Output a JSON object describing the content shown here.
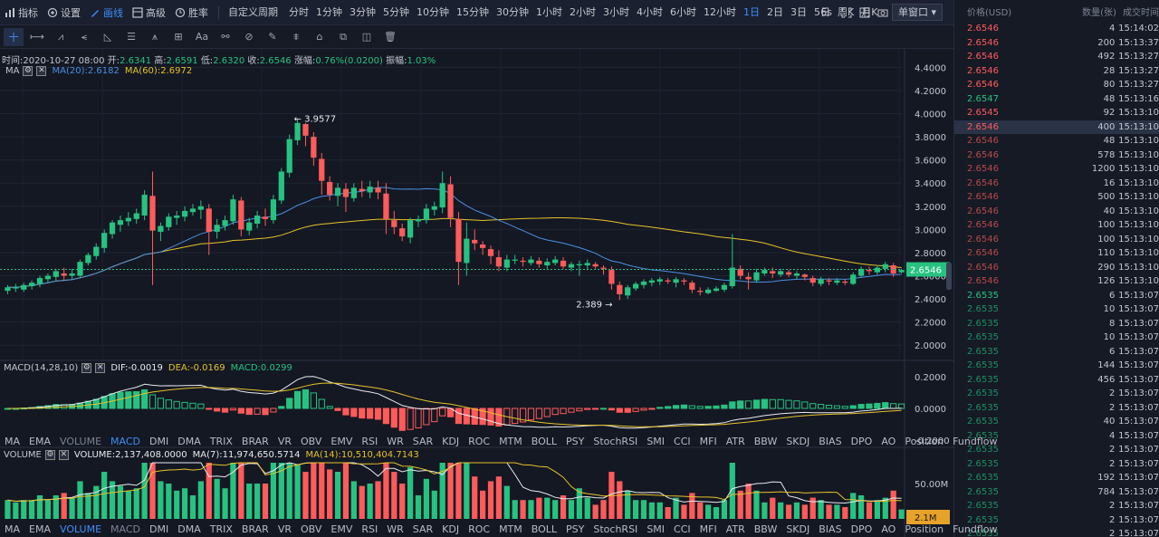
{
  "toolbar": {
    "items": [
      {
        "label": "指标",
        "icon": "indicator-icon"
      },
      {
        "label": "设置",
        "icon": "settings-icon"
      },
      {
        "label": "画线",
        "icon": "draw-icon",
        "active": true
      },
      {
        "label": "高级",
        "icon": "advanced-icon"
      },
      {
        "label": "胜率",
        "icon": "winrate-icon"
      }
    ],
    "custom_period": "自定义周期",
    "periods": [
      "分时",
      "1分钟",
      "3分钟",
      "5分钟",
      "10分钟",
      "15分钟",
      "30分钟",
      "1小时",
      "2小时",
      "3小时",
      "4小时",
      "6小时",
      "12小时",
      "1日",
      "2日",
      "3日",
      "5日",
      "周K",
      "月K"
    ],
    "active_period": "1日",
    "refresh": "6s",
    "window_mode": "单窗口"
  },
  "drawtools": [
    "十",
    "⟼",
    "⩘",
    "⪪",
    "◺",
    "☰",
    "⩚",
    "⊞",
    "Aa",
    "⚯",
    "⊘",
    "✎",
    "⩨",
    "⌂",
    "⧉",
    "◫",
    "🗑"
  ],
  "ohlc": {
    "time_label": "时间:",
    "time": "2020-10-27 08:00",
    "open_label": "开:",
    "open": "2.6341",
    "high_label": "高:",
    "high": "2.6591",
    "low_label": "低:",
    "low": "2.6320",
    "close_label": "收:",
    "close": "2.6546",
    "change_label": "涨幅:",
    "change": "0.76%(0.0200)",
    "amp_label": "振幅:",
    "amp": "1.03%"
  },
  "ma_legend": {
    "name": "MA",
    "ma20": "MA(20):2.6182",
    "ma60": "MA(60):2.6972"
  },
  "macd_legend": {
    "name": "MACD(14,28,10)",
    "dif": "DIF:-0.0019",
    "dea": "DEA:-0.0169",
    "macd": "MACD:0.0299"
  },
  "vol_legend": {
    "name": "VOLUME",
    "volume": "VOLUME:2,137,408.0000",
    "ma7": "MA(7):11,974,650.5714",
    "ma14": "MA(14):10,510,404.7143"
  },
  "indicator_tabs": [
    "MA",
    "EMA",
    "VOLUME",
    "MACD",
    "DMI",
    "DMA",
    "TRIX",
    "BRAR",
    "VR",
    "OBV",
    "EMV",
    "RSI",
    "WR",
    "SAR",
    "KDJ",
    "ROC",
    "MTM",
    "BOLL",
    "PSY",
    "StochRSI",
    "SMI",
    "CCI",
    "MFI",
    "ATR",
    "BBW",
    "SKDJ",
    "BIAS",
    "DPO",
    "AO",
    "Position",
    "Fundflow"
  ],
  "price_axis": [
    "4.4000",
    "4.2000",
    "4.0000",
    "3.8000",
    "3.6000",
    "3.4000",
    "3.2000",
    "3.0000",
    "2.8000",
    "2.6000",
    "2.4000",
    "2.2000",
    "2.0000"
  ],
  "macd_axis": [
    "0.2000",
    "0.0000",
    "-0.2000"
  ],
  "vol_axis": [
    "50.00M"
  ],
  "current_price": "2.6546",
  "current_vol": "2.1M",
  "annotations": {
    "high": "← 3.9577",
    "low": "2.389 →"
  },
  "colors": {
    "up": "#26c281",
    "down": "#ff5b5b",
    "ma20": "#4a90e2",
    "ma60": "#e6c229",
    "accent": "#3e8ef7"
  },
  "trades": {
    "headers": [
      "价格(USD)",
      "数量(张)",
      "成交时间"
    ],
    "rows": [
      [
        "2.6546",
        "4",
        "15:14:02",
        "down"
      ],
      [
        "2.6546",
        "200",
        "15:13:37",
        "down"
      ],
      [
        "2.6546",
        "492",
        "15:13:27",
        "down"
      ],
      [
        "2.6546",
        "28",
        "15:13:27",
        "down"
      ],
      [
        "2.6546",
        "80",
        "15:13:27",
        "down"
      ],
      [
        "2.6547",
        "48",
        "15:13:16",
        "up"
      ],
      [
        "2.6545",
        "92",
        "15:13:10",
        "down"
      ],
      [
        "2.6546",
        "400",
        "15:13:10",
        "down-hl"
      ],
      [
        "2.6546",
        "48",
        "15:13:10",
        "down"
      ],
      [
        "2.6546",
        "578",
        "15:13:10",
        "down"
      ],
      [
        "2.6546",
        "1200",
        "15:13:10",
        "down"
      ],
      [
        "2.6546",
        "16",
        "15:13:10",
        "down"
      ],
      [
        "2.6546",
        "500",
        "15:13:10",
        "down"
      ],
      [
        "2.6546",
        "40",
        "15:13:10",
        "down"
      ],
      [
        "2.6546",
        "100",
        "15:13:10",
        "down"
      ],
      [
        "2.6546",
        "100",
        "15:13:10",
        "down"
      ],
      [
        "2.6546",
        "110",
        "15:13:10",
        "down"
      ],
      [
        "2.6546",
        "290",
        "15:13:10",
        "down"
      ],
      [
        "2.6546",
        "126",
        "15:13:10",
        "down"
      ],
      [
        "2.6535",
        "6",
        "15:13:07",
        "up"
      ],
      [
        "2.6535",
        "10",
        "15:13:07",
        "up"
      ],
      [
        "2.6535",
        "8",
        "15:13:07",
        "up"
      ],
      [
        "2.6535",
        "10",
        "15:13:07",
        "up"
      ],
      [
        "2.6535",
        "6",
        "15:13:07",
        "up"
      ],
      [
        "2.6535",
        "144",
        "15:13:07",
        "up"
      ],
      [
        "2.6535",
        "456",
        "15:13:07",
        "up"
      ],
      [
        "2.6535",
        "2",
        "15:13:07",
        "up"
      ],
      [
        "2.6535",
        "2",
        "15:13:07",
        "up"
      ],
      [
        "2.6535",
        "40",
        "15:13:07",
        "up"
      ],
      [
        "2.6535",
        "4",
        "15:13:07",
        "up"
      ],
      [
        "2.6535",
        "2",
        "15:13:07",
        "up"
      ],
      [
        "2.6535",
        "2",
        "15:13:07",
        "up"
      ],
      [
        "2.6535",
        "192",
        "15:13:07",
        "up"
      ],
      [
        "2.6535",
        "784",
        "15:13:07",
        "up"
      ],
      [
        "2.6535",
        "2",
        "15:13:07",
        "up"
      ],
      [
        "2.6535",
        "2",
        "15:13:07",
        "up"
      ],
      [
        "2.6535",
        "2",
        "15:13:07",
        "up"
      ]
    ]
  },
  "chart_data": {
    "type": "candlestick",
    "ylim": [
      1.9,
      4.45
    ],
    "candles": [
      [
        2.47,
        2.5,
        2.44,
        2.52
      ],
      [
        2.49,
        2.5,
        2.46,
        2.53
      ],
      [
        2.48,
        2.52,
        2.46,
        2.54
      ],
      [
        2.51,
        2.54,
        2.48,
        2.56
      ],
      [
        2.53,
        2.58,
        2.5,
        2.6
      ],
      [
        2.57,
        2.6,
        2.54,
        2.62
      ],
      [
        2.59,
        2.64,
        2.56,
        2.66
      ],
      [
        2.62,
        2.6,
        2.56,
        2.67
      ],
      [
        2.6,
        2.62,
        2.57,
        2.66
      ],
      [
        2.6,
        2.72,
        2.58,
        2.74
      ],
      [
        2.71,
        2.78,
        2.69,
        2.8
      ],
      [
        2.77,
        2.85,
        2.74,
        2.88
      ],
      [
        2.84,
        2.97,
        2.8,
        3.0
      ],
      [
        2.96,
        3.06,
        2.92,
        3.08
      ],
      [
        3.04,
        3.08,
        2.98,
        3.12
      ],
      [
        3.07,
        3.1,
        3.03,
        3.15
      ],
      [
        3.09,
        3.14,
        3.05,
        3.18
      ],
      [
        3.12,
        3.3,
        3.08,
        3.34
      ],
      [
        3.29,
        2.99,
        2.52,
        3.5
      ],
      [
        2.98,
        3.03,
        2.9,
        3.06
      ],
      [
        3.02,
        3.11,
        2.99,
        3.14
      ],
      [
        3.1,
        3.12,
        3.04,
        3.16
      ],
      [
        3.11,
        3.16,
        3.07,
        3.2
      ],
      [
        3.15,
        3.18,
        3.12,
        3.22
      ],
      [
        3.17,
        3.2,
        3.09,
        3.25
      ],
      [
        3.18,
        2.98,
        2.78,
        3.22
      ],
      [
        2.98,
        3.04,
        2.92,
        3.09
      ],
      [
        3.03,
        3.08,
        2.99,
        3.12
      ],
      [
        3.07,
        3.26,
        3.04,
        3.3
      ],
      [
        3.25,
        3.0,
        2.94,
        3.28
      ],
      [
        2.99,
        3.06,
        2.95,
        3.1
      ],
      [
        3.05,
        3.12,
        3.01,
        3.16
      ],
      [
        3.11,
        3.09,
        3.03,
        3.18
      ],
      [
        3.08,
        3.26,
        3.05,
        3.3
      ],
      [
        3.25,
        3.5,
        3.22,
        3.53
      ],
      [
        3.49,
        3.78,
        3.45,
        3.82
      ],
      [
        3.77,
        3.92,
        3.73,
        3.96
      ],
      [
        3.91,
        3.81,
        3.72,
        3.92
      ],
      [
        3.8,
        3.62,
        3.55,
        3.84
      ],
      [
        3.61,
        3.42,
        3.3,
        3.66
      ],
      [
        3.41,
        3.3,
        3.25,
        3.46
      ],
      [
        3.29,
        3.36,
        3.2,
        3.4
      ],
      [
        3.35,
        3.28,
        3.15,
        3.4
      ],
      [
        3.27,
        3.36,
        3.24,
        3.4
      ],
      [
        3.35,
        3.33,
        3.28,
        3.42
      ],
      [
        3.32,
        3.37,
        3.27,
        3.42
      ],
      [
        3.36,
        3.32,
        3.26,
        3.42
      ],
      [
        3.31,
        3.09,
        2.96,
        3.4
      ],
      [
        3.08,
        3.02,
        2.96,
        3.16
      ],
      [
        3.01,
        2.94,
        2.9,
        3.05
      ],
      [
        2.93,
        3.08,
        2.88,
        3.1
      ],
      [
        3.07,
        3.09,
        3.02,
        3.12
      ],
      [
        3.08,
        3.18,
        3.05,
        3.22
      ],
      [
        3.17,
        3.2,
        3.12,
        3.24
      ],
      [
        3.19,
        3.4,
        3.14,
        3.5
      ],
      [
        3.39,
        3.1,
        3.02,
        3.46
      ],
      [
        3.09,
        2.72,
        2.52,
        3.15
      ],
      [
        2.71,
        2.92,
        2.6,
        3.06
      ],
      [
        2.91,
        2.88,
        2.82,
        3.0
      ],
      [
        2.87,
        2.84,
        2.78,
        2.9
      ],
      [
        2.83,
        2.77,
        2.7,
        2.86
      ],
      [
        2.76,
        2.68,
        2.64,
        2.82
      ],
      [
        2.67,
        2.74,
        2.64,
        2.78
      ],
      [
        2.73,
        2.74,
        2.7,
        2.78
      ],
      [
        2.73,
        2.72,
        2.68,
        2.76
      ],
      [
        2.71,
        2.74,
        2.69,
        2.77
      ],
      [
        2.73,
        2.7,
        2.67,
        2.76
      ],
      [
        2.69,
        2.72,
        2.66,
        2.75
      ],
      [
        2.71,
        2.74,
        2.69,
        2.77
      ],
      [
        2.73,
        2.68,
        2.66,
        2.76
      ],
      [
        2.67,
        2.7,
        2.64,
        2.72
      ],
      [
        2.69,
        2.7,
        2.6,
        2.73
      ],
      [
        2.69,
        2.71,
        2.65,
        2.74
      ],
      [
        2.7,
        2.68,
        2.66,
        2.72
      ],
      [
        2.67,
        2.66,
        2.61,
        2.69
      ],
      [
        2.65,
        2.53,
        2.48,
        2.68
      ],
      [
        2.52,
        2.44,
        2.39,
        2.55
      ],
      [
        2.43,
        2.5,
        2.4,
        2.52
      ],
      [
        2.49,
        2.53,
        2.47,
        2.55
      ],
      [
        2.52,
        2.55,
        2.49,
        2.57
      ],
      [
        2.54,
        2.56,
        2.51,
        2.58
      ],
      [
        2.55,
        2.57,
        2.52,
        2.59
      ],
      [
        2.56,
        2.55,
        2.53,
        2.58
      ],
      [
        2.54,
        2.57,
        2.5,
        2.59
      ],
      [
        2.56,
        2.55,
        2.52,
        2.58
      ],
      [
        2.54,
        2.48,
        2.45,
        2.56
      ],
      [
        2.47,
        2.46,
        2.43,
        2.5
      ],
      [
        2.45,
        2.48,
        2.44,
        2.5
      ],
      [
        2.47,
        2.49,
        2.46,
        2.51
      ],
      [
        2.48,
        2.52,
        2.46,
        2.54
      ],
      [
        2.51,
        2.67,
        2.49,
        2.96
      ],
      [
        2.66,
        2.6,
        2.57,
        2.69
      ],
      [
        2.59,
        2.57,
        2.48,
        2.63
      ],
      [
        2.56,
        2.63,
        2.54,
        2.66
      ],
      [
        2.62,
        2.65,
        2.6,
        2.67
      ],
      [
        2.64,
        2.62,
        2.58,
        2.67
      ],
      [
        2.61,
        2.64,
        2.59,
        2.66
      ],
      [
        2.63,
        2.61,
        2.59,
        2.65
      ],
      [
        2.6,
        2.62,
        2.57,
        2.64
      ],
      [
        2.61,
        2.59,
        2.56,
        2.62
      ],
      [
        2.58,
        2.54,
        2.51,
        2.6
      ],
      [
        2.53,
        2.57,
        2.51,
        2.59
      ],
      [
        2.56,
        2.55,
        2.52,
        2.58
      ],
      [
        2.54,
        2.56,
        2.52,
        2.58
      ],
      [
        2.55,
        2.54,
        2.52,
        2.57
      ],
      [
        2.53,
        2.61,
        2.52,
        2.63
      ],
      [
        2.6,
        2.66,
        2.58,
        2.68
      ],
      [
        2.65,
        2.64,
        2.61,
        2.68
      ],
      [
        2.63,
        2.67,
        2.61,
        2.69
      ],
      [
        2.66,
        2.7,
        2.63,
        2.72
      ],
      [
        2.69,
        2.62,
        2.59,
        2.71
      ],
      [
        2.63,
        2.65,
        2.62,
        2.66
      ]
    ]
  }
}
